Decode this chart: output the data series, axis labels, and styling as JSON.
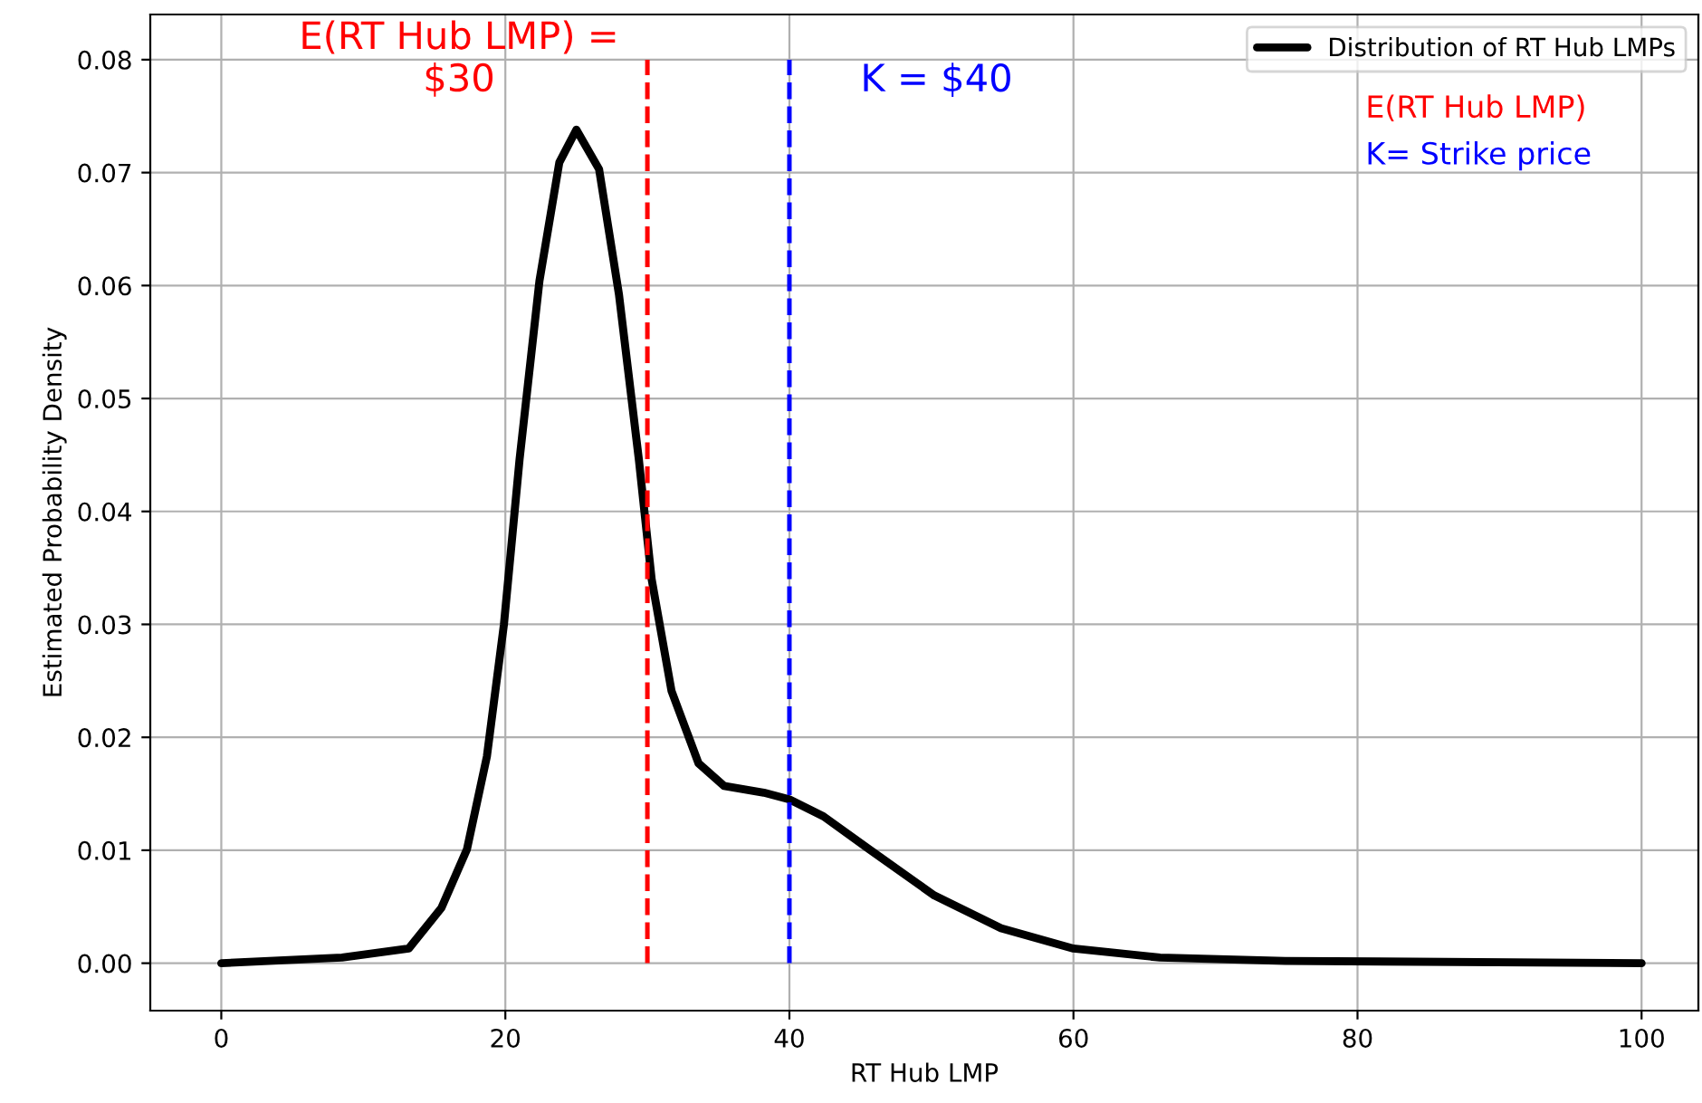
{
  "chart_data": {
    "type": "line",
    "xlabel": "RT Hub LMP",
    "ylabel": "Estimated Probability Density",
    "xlim": [
      -5,
      104
    ],
    "ylim": [
      -0.0042,
      0.084
    ],
    "xticks": [
      0,
      20,
      40,
      60,
      80,
      100
    ],
    "yticks": [
      {
        "value": 0,
        "label": "0.00"
      },
      {
        "value": 0.01,
        "label": "0.01"
      },
      {
        "value": 0.02,
        "label": "0.02"
      },
      {
        "value": 0.03,
        "label": "0.03"
      },
      {
        "value": 0.04,
        "label": "0.04"
      },
      {
        "value": 0.05,
        "label": "0.05"
      },
      {
        "value": 0.06,
        "label": "0.06"
      },
      {
        "value": 0.07,
        "label": "0.07"
      },
      {
        "value": 0.08,
        "label": "0.08"
      }
    ],
    "grid": true,
    "legend": "top right",
    "line_style": "solid",
    "series": [
      {
        "name": "Distribution of RT Hub LMPs",
        "color": "#000000",
        "x": [
          0,
          8.5,
          13.2,
          15.5,
          17.3,
          18.7,
          19.9,
          21.0,
          22.4,
          23.8,
          25.0,
          26.6,
          28.0,
          29.4,
          30.3,
          31.7,
          33.6,
          35.4,
          38.2,
          40.0,
          42.4,
          45.6,
          50.2,
          54.9,
          60.0,
          66.1,
          74.9,
          100
        ],
        "values": [
          0,
          0.0005,
          0.0013,
          0.0049,
          0.0101,
          0.0183,
          0.03,
          0.0446,
          0.0604,
          0.0709,
          0.0738,
          0.0703,
          0.0592,
          0.0446,
          0.034,
          0.0241,
          0.0177,
          0.0157,
          0.0151,
          0.0145,
          0.013,
          0.0101,
          0.006,
          0.0031,
          0.0013,
          0.0005,
          0.0002,
          0
        ]
      }
    ],
    "ref_lines": [
      {
        "axis": "x",
        "value": 30,
        "label": "E(RT Hub LMP) =\n$30",
        "color": "#ff0000",
        "line_style": "dashed"
      },
      {
        "axis": "x",
        "value": 40,
        "label": "K = $40",
        "color": "#0000ff",
        "line_style": "dashed"
      }
    ],
    "annotations": [
      "E(RT Hub LMP)",
      "K= Strike price"
    ]
  }
}
